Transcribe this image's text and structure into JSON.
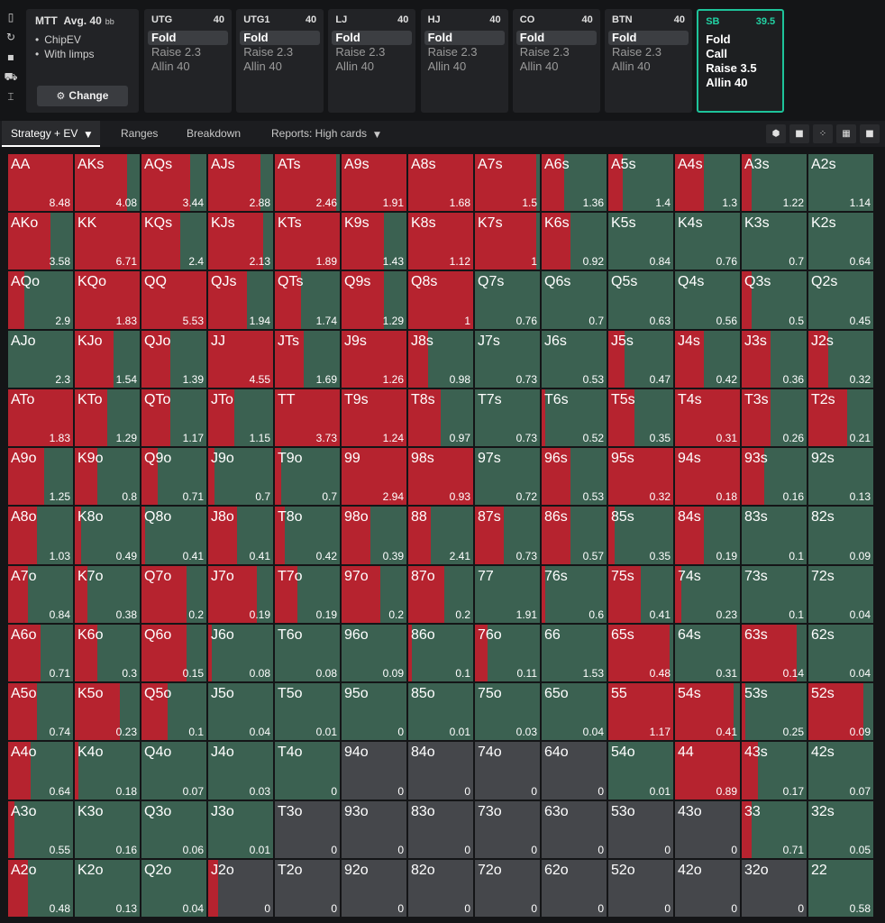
{
  "sidebar_icons": [
    "bookmark-icon",
    "refresh-icon",
    "save-icon",
    "car-icon",
    "text-cursor-icon"
  ],
  "sidebar_glyphs": [
    "▯",
    "↻",
    "▪",
    "⛟",
    "⌶"
  ],
  "game": {
    "format": "MTT",
    "avg_label": "Avg. 40",
    "bb_label": "bb",
    "options": [
      "ChipEV",
      "With limps"
    ],
    "change_label": "Change"
  },
  "positions": [
    {
      "name": "UTG",
      "stack": "40",
      "actions": [
        "Fold",
        "Raise 2.3",
        "Allin 40"
      ],
      "selected": 0,
      "active": false
    },
    {
      "name": "UTG1",
      "stack": "40",
      "actions": [
        "Fold",
        "Raise 2.3",
        "Allin 40"
      ],
      "selected": 0,
      "active": false
    },
    {
      "name": "LJ",
      "stack": "40",
      "actions": [
        "Fold",
        "Raise 2.3",
        "Allin 40"
      ],
      "selected": 0,
      "active": false
    },
    {
      "name": "HJ",
      "stack": "40",
      "actions": [
        "Fold",
        "Raise 2.3",
        "Allin 40"
      ],
      "selected": 0,
      "active": false
    },
    {
      "name": "CO",
      "stack": "40",
      "actions": [
        "Fold",
        "Raise 2.3",
        "Allin 40"
      ],
      "selected": 0,
      "active": false
    },
    {
      "name": "BTN",
      "stack": "40",
      "actions": [
        "Fold",
        "Raise 2.3",
        "Allin 40"
      ],
      "selected": 0,
      "active": false
    },
    {
      "name": "SB",
      "stack": "39.5",
      "actions": [
        "Fold",
        "Call",
        "Raise 3.5",
        "Allin 40"
      ],
      "selected": -1,
      "active": true
    }
  ],
  "tabs": [
    {
      "label": "Strategy + EV",
      "active": true,
      "caret": true
    },
    {
      "label": "Ranges",
      "active": false,
      "caret": false
    },
    {
      "label": "Breakdown",
      "active": false,
      "caret": false
    },
    {
      "label": "Reports: High cards",
      "active": false,
      "caret": true
    }
  ],
  "view_buttons": [
    "cube-icon",
    "square-icon",
    "small-grid-icon",
    "grid-icon",
    "full-square-icon"
  ],
  "colors": {
    "raise": "#b6232f",
    "fold": "#3b6151",
    "no_hand": "#45474b",
    "active_border": "#1ec39a"
  },
  "grid": [
    [
      {
        "h": "AA",
        "ev": "8.48",
        "r": 1
      },
      {
        "h": "AKs",
        "ev": "4.08",
        "r": 0.8
      },
      {
        "h": "AQs",
        "ev": "3.44",
        "r": 0.75
      },
      {
        "h": "AJs",
        "ev": "2.88",
        "r": 0.8
      },
      {
        "h": "ATs",
        "ev": "2.46",
        "r": 0.95
      },
      {
        "h": "A9s",
        "ev": "1.91",
        "r": 1
      },
      {
        "h": "A8s",
        "ev": "1.68",
        "r": 1
      },
      {
        "h": "A7s",
        "ev": "1.5",
        "r": 0.95
      },
      {
        "h": "A6s",
        "ev": "1.36",
        "r": 0.35
      },
      {
        "h": "A5s",
        "ev": "1.4",
        "r": 0.22
      },
      {
        "h": "A4s",
        "ev": "1.3",
        "r": 0.45
      },
      {
        "h": "A3s",
        "ev": "1.22",
        "r": 0.15
      },
      {
        "h": "A2s",
        "ev": "1.14",
        "r": 0
      }
    ],
    [
      {
        "h": "AKo",
        "ev": "3.58",
        "r": 0.65
      },
      {
        "h": "KK",
        "ev": "6.71",
        "r": 1
      },
      {
        "h": "KQs",
        "ev": "2.4",
        "r": 0.6
      },
      {
        "h": "KJs",
        "ev": "2.13",
        "r": 0.85
      },
      {
        "h": "KTs",
        "ev": "1.89",
        "r": 1
      },
      {
        "h": "K9s",
        "ev": "1.43",
        "r": 0.65
      },
      {
        "h": "K8s",
        "ev": "1.12",
        "r": 1
      },
      {
        "h": "K7s",
        "ev": "1",
        "r": 0.95
      },
      {
        "h": "K6s",
        "ev": "0.92",
        "r": 0.45
      },
      {
        "h": "K5s",
        "ev": "0.84",
        "r": 0
      },
      {
        "h": "K4s",
        "ev": "0.76",
        "r": 0
      },
      {
        "h": "K3s",
        "ev": "0.7",
        "r": 0
      },
      {
        "h": "K2s",
        "ev": "0.64",
        "r": 0
      }
    ],
    [
      {
        "h": "AQo",
        "ev": "2.9",
        "r": 0.25
      },
      {
        "h": "KQo",
        "ev": "1.83",
        "r": 1
      },
      {
        "h": "QQ",
        "ev": "5.53",
        "r": 1
      },
      {
        "h": "QJs",
        "ev": "1.94",
        "r": 0.6
      },
      {
        "h": "QTs",
        "ev": "1.74",
        "r": 0.4
      },
      {
        "h": "Q9s",
        "ev": "1.29",
        "r": 0.65
      },
      {
        "h": "Q8s",
        "ev": "1",
        "r": 1
      },
      {
        "h": "Q7s",
        "ev": "0.76",
        "r": 0
      },
      {
        "h": "Q6s",
        "ev": "0.7",
        "r": 0
      },
      {
        "h": "Q5s",
        "ev": "0.63",
        "r": 0
      },
      {
        "h": "Q4s",
        "ev": "0.56",
        "r": 0
      },
      {
        "h": "Q3s",
        "ev": "0.5",
        "r": 0.15
      },
      {
        "h": "Q2s",
        "ev": "0.45",
        "r": 0
      }
    ],
    [
      {
        "h": "AJo",
        "ev": "2.3",
        "r": 0
      },
      {
        "h": "KJo",
        "ev": "1.54",
        "r": 0.6
      },
      {
        "h": "QJo",
        "ev": "1.39",
        "r": 0.45
      },
      {
        "h": "JJ",
        "ev": "4.55",
        "r": 1
      },
      {
        "h": "JTs",
        "ev": "1.69",
        "r": 0.45
      },
      {
        "h": "J9s",
        "ev": "1.26",
        "r": 1
      },
      {
        "h": "J8s",
        "ev": "0.98",
        "r": 0.3
      },
      {
        "h": "J7s",
        "ev": "0.73",
        "r": 0
      },
      {
        "h": "J6s",
        "ev": "0.53",
        "r": 0
      },
      {
        "h": "J5s",
        "ev": "0.47",
        "r": 0.25
      },
      {
        "h": "J4s",
        "ev": "0.42",
        "r": 0.45
      },
      {
        "h": "J3s",
        "ev": "0.36",
        "r": 0.45
      },
      {
        "h": "J2s",
        "ev": "0.32",
        "r": 0.3
      }
    ],
    [
      {
        "h": "ATo",
        "ev": "1.83",
        "r": 1
      },
      {
        "h": "KTo",
        "ev": "1.29",
        "r": 0.5
      },
      {
        "h": "QTo",
        "ev": "1.17",
        "r": 0.45
      },
      {
        "h": "JTo",
        "ev": "1.15",
        "r": 0.4
      },
      {
        "h": "TT",
        "ev": "3.73",
        "r": 1
      },
      {
        "h": "T9s",
        "ev": "1.24",
        "r": 1
      },
      {
        "h": "T8s",
        "ev": "0.97",
        "r": 0.5
      },
      {
        "h": "T7s",
        "ev": "0.73",
        "r": 0
      },
      {
        "h": "T6s",
        "ev": "0.52",
        "r": 0.05
      },
      {
        "h": "T5s",
        "ev": "0.35",
        "r": 0.4
      },
      {
        "h": "T4s",
        "ev": "0.31",
        "r": 1
      },
      {
        "h": "T3s",
        "ev": "0.26",
        "r": 0.45
      },
      {
        "h": "T2s",
        "ev": "0.21",
        "r": 0.6
      }
    ],
    [
      {
        "h": "A9o",
        "ev": "1.25",
        "r": 0.55
      },
      {
        "h": "K9o",
        "ev": "0.8",
        "r": 0.35
      },
      {
        "h": "Q9o",
        "ev": "0.71",
        "r": 0.25
      },
      {
        "h": "J9o",
        "ev": "0.7",
        "r": 0.1
      },
      {
        "h": "T9o",
        "ev": "0.7",
        "r": 0.1
      },
      {
        "h": "99",
        "ev": "2.94",
        "r": 1
      },
      {
        "h": "98s",
        "ev": "0.93",
        "r": 1
      },
      {
        "h": "97s",
        "ev": "0.72",
        "r": 0
      },
      {
        "h": "96s",
        "ev": "0.53",
        "r": 0.45
      },
      {
        "h": "95s",
        "ev": "0.32",
        "r": 1
      },
      {
        "h": "94s",
        "ev": "0.18",
        "r": 1
      },
      {
        "h": "93s",
        "ev": "0.16",
        "r": 0.35
      },
      {
        "h": "92s",
        "ev": "0.13",
        "r": 0
      }
    ],
    [
      {
        "h": "A8o",
        "ev": "1.03",
        "r": 0.45
      },
      {
        "h": "K8o",
        "ev": "0.49",
        "r": 0.1
      },
      {
        "h": "Q8o",
        "ev": "0.41",
        "r": 0.05
      },
      {
        "h": "J8o",
        "ev": "0.41",
        "r": 0.45
      },
      {
        "h": "T8o",
        "ev": "0.42",
        "r": 0.15
      },
      {
        "h": "98o",
        "ev": "0.39",
        "r": 0.45
      },
      {
        "h": "88",
        "ev": "2.41",
        "r": 0.35
      },
      {
        "h": "87s",
        "ev": "0.73",
        "r": 0.45
      },
      {
        "h": "86s",
        "ev": "0.57",
        "r": 0.45
      },
      {
        "h": "85s",
        "ev": "0.35",
        "r": 0.1
      },
      {
        "h": "84s",
        "ev": "0.19",
        "r": 0.45
      },
      {
        "h": "83s",
        "ev": "0.1",
        "r": 0
      },
      {
        "h": "82s",
        "ev": "0.09",
        "r": 0
      }
    ],
    [
      {
        "h": "A7o",
        "ev": "0.84",
        "r": 0.3
      },
      {
        "h": "K7o",
        "ev": "0.38",
        "r": 0.2
      },
      {
        "h": "Q7o",
        "ev": "0.2",
        "r": 0.7
      },
      {
        "h": "J7o",
        "ev": "0.19",
        "r": 0.75
      },
      {
        "h": "T7o",
        "ev": "0.19",
        "r": 0.35
      },
      {
        "h": "97o",
        "ev": "0.2",
        "r": 0.6
      },
      {
        "h": "87o",
        "ev": "0.2",
        "r": 0.55
      },
      {
        "h": "77",
        "ev": "1.91",
        "r": 0
      },
      {
        "h": "76s",
        "ev": "0.6",
        "r": 0.05
      },
      {
        "h": "75s",
        "ev": "0.41",
        "r": 0.5
      },
      {
        "h": "74s",
        "ev": "0.23",
        "r": 0.1
      },
      {
        "h": "73s",
        "ev": "0.1",
        "r": 0
      },
      {
        "h": "72s",
        "ev": "0.04",
        "r": 0
      }
    ],
    [
      {
        "h": "A6o",
        "ev": "0.71",
        "r": 0.5
      },
      {
        "h": "K6o",
        "ev": "0.3",
        "r": 0.35
      },
      {
        "h": "Q6o",
        "ev": "0.15",
        "r": 0.7
      },
      {
        "h": "J6o",
        "ev": "0.08",
        "r": 0.05
      },
      {
        "h": "T6o",
        "ev": "0.08",
        "r": 0
      },
      {
        "h": "96o",
        "ev": "0.09",
        "r": 0
      },
      {
        "h": "86o",
        "ev": "0.1",
        "r": 0.05
      },
      {
        "h": "76o",
        "ev": "0.11",
        "r": 0.2
      },
      {
        "h": "66",
        "ev": "1.53",
        "r": 0
      },
      {
        "h": "65s",
        "ev": "0.48",
        "r": 0.95
      },
      {
        "h": "64s",
        "ev": "0.31",
        "r": 0
      },
      {
        "h": "63s",
        "ev": "0.14",
        "r": 0.85
      },
      {
        "h": "62s",
        "ev": "0.04",
        "r": 0
      }
    ],
    [
      {
        "h": "A5o",
        "ev": "0.74",
        "r": 0.45
      },
      {
        "h": "K5o",
        "ev": "0.23",
        "r": 0.7
      },
      {
        "h": "Q5o",
        "ev": "0.1",
        "r": 0.4
      },
      {
        "h": "J5o",
        "ev": "0.04",
        "r": 0
      },
      {
        "h": "T5o",
        "ev": "0.01",
        "r": 0
      },
      {
        "h": "95o",
        "ev": "0",
        "r": 0
      },
      {
        "h": "85o",
        "ev": "0.01",
        "r": 0
      },
      {
        "h": "75o",
        "ev": "0.03",
        "r": 0
      },
      {
        "h": "65o",
        "ev": "0.04",
        "r": 0
      },
      {
        "h": "55",
        "ev": "1.17",
        "r": 1
      },
      {
        "h": "54s",
        "ev": "0.41",
        "r": 0.9
      },
      {
        "h": "53s",
        "ev": "0.25",
        "r": 0.05
      },
      {
        "h": "52s",
        "ev": "0.09",
        "r": 0.85
      }
    ],
    [
      {
        "h": "A4o",
        "ev": "0.64",
        "r": 0.35
      },
      {
        "h": "K4o",
        "ev": "0.18",
        "r": 0.05
      },
      {
        "h": "Q4o",
        "ev": "0.07",
        "r": 0
      },
      {
        "h": "J4o",
        "ev": "0.03",
        "r": 0
      },
      {
        "h": "T4o",
        "ev": "0",
        "r": 0
      },
      {
        "h": "94o",
        "ev": "0",
        "r": 0,
        "z": true
      },
      {
        "h": "84o",
        "ev": "0",
        "r": 0,
        "z": true
      },
      {
        "h": "74o",
        "ev": "0",
        "r": 0,
        "z": true
      },
      {
        "h": "64o",
        "ev": "0",
        "r": 0,
        "z": true
      },
      {
        "h": "54o",
        "ev": "0.01",
        "r": 0
      },
      {
        "h": "44",
        "ev": "0.89",
        "r": 1
      },
      {
        "h": "43s",
        "ev": "0.17",
        "r": 0.25
      },
      {
        "h": "42s",
        "ev": "0.07",
        "r": 0
      }
    ],
    [
      {
        "h": "A3o",
        "ev": "0.55",
        "r": 0.1
      },
      {
        "h": "K3o",
        "ev": "0.16",
        "r": 0
      },
      {
        "h": "Q3o",
        "ev": "0.06",
        "r": 0
      },
      {
        "h": "J3o",
        "ev": "0.01",
        "r": 0
      },
      {
        "h": "T3o",
        "ev": "0",
        "r": 0,
        "z": true
      },
      {
        "h": "93o",
        "ev": "0",
        "r": 0,
        "z": true
      },
      {
        "h": "83o",
        "ev": "0",
        "r": 0,
        "z": true
      },
      {
        "h": "73o",
        "ev": "0",
        "r": 0,
        "z": true
      },
      {
        "h": "63o",
        "ev": "0",
        "r": 0,
        "z": true
      },
      {
        "h": "53o",
        "ev": "0",
        "r": 0,
        "z": true
      },
      {
        "h": "43o",
        "ev": "0",
        "r": 0,
        "z": true
      },
      {
        "h": "33",
        "ev": "0.71",
        "r": 0.15
      },
      {
        "h": "32s",
        "ev": "0.05",
        "r": 0
      }
    ],
    [
      {
        "h": "A2o",
        "ev": "0.48",
        "r": 0.3
      },
      {
        "h": "K2o",
        "ev": "0.13",
        "r": 0
      },
      {
        "h": "Q2o",
        "ev": "0.04",
        "r": 0
      },
      {
        "h": "J2o",
        "ev": "0",
        "r": 0.15,
        "z": true
      },
      {
        "h": "T2o",
        "ev": "0",
        "r": 0,
        "z": true
      },
      {
        "h": "92o",
        "ev": "0",
        "r": 0,
        "z": true
      },
      {
        "h": "82o",
        "ev": "0",
        "r": 0,
        "z": true
      },
      {
        "h": "72o",
        "ev": "0",
        "r": 0,
        "z": true
      },
      {
        "h": "62o",
        "ev": "0",
        "r": 0,
        "z": true
      },
      {
        "h": "52o",
        "ev": "0",
        "r": 0,
        "z": true
      },
      {
        "h": "42o",
        "ev": "0",
        "r": 0,
        "z": true
      },
      {
        "h": "32o",
        "ev": "0",
        "r": 0,
        "z": true
      },
      {
        "h": "22",
        "ev": "0.58",
        "r": 0
      }
    ]
  ]
}
